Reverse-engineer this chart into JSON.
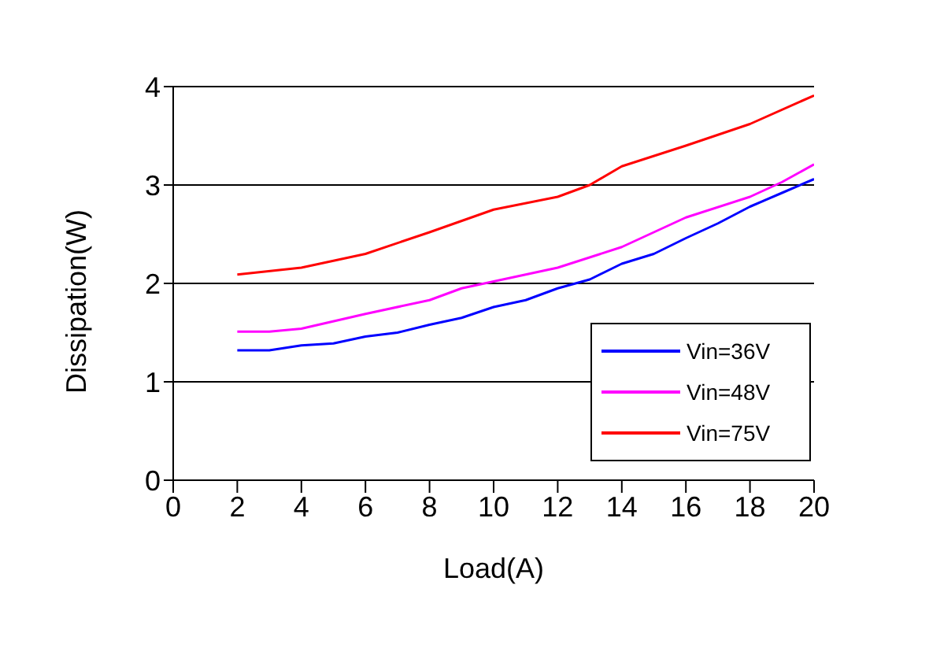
{
  "chart_data": {
    "type": "line",
    "xlabel": "Load(A)",
    "ylabel": "Dissipation(W)",
    "xlim": [
      0,
      20
    ],
    "xticks": [
      0,
      2,
      4,
      6,
      8,
      10,
      12,
      14,
      16,
      18,
      20
    ],
    "ylim": [
      0,
      4
    ],
    "yticks": [
      0,
      1,
      2,
      3,
      4
    ],
    "grid": "y",
    "legend": "bottom right",
    "marker": "none",
    "line_style": "solid",
    "series": [
      {
        "name": "Vin=36V",
        "color": "#0000ff",
        "x": [
          2,
          3,
          4,
          5,
          6,
          7,
          8,
          9,
          10,
          11,
          12,
          13,
          14,
          15,
          16,
          17,
          18,
          19,
          20
        ],
        "values": [
          1.32,
          1.32,
          1.37,
          1.39,
          1.46,
          1.5,
          1.58,
          1.65,
          1.76,
          1.83,
          1.95,
          2.04,
          2.2,
          2.3,
          2.46,
          2.61,
          2.78,
          2.92,
          3.06
        ]
      },
      {
        "name": "Vin=48V",
        "color": "#ff00ff",
        "x": [
          2,
          3,
          4,
          6,
          8,
          9,
          10,
          12,
          14,
          16,
          18,
          19,
          20
        ],
        "values": [
          1.51,
          1.51,
          1.54,
          1.69,
          1.83,
          1.95,
          2.02,
          2.16,
          2.37,
          2.67,
          2.88,
          3.03,
          3.21
        ]
      },
      {
        "name": "Vin=75V",
        "color": "#ff0000",
        "x": [
          2,
          4,
          5,
          6,
          8,
          10,
          12,
          13,
          14,
          16,
          18,
          20
        ],
        "values": [
          2.09,
          2.16,
          2.23,
          2.3,
          2.52,
          2.75,
          2.88,
          3.0,
          3.19,
          3.4,
          3.62,
          3.91
        ]
      }
    ]
  }
}
